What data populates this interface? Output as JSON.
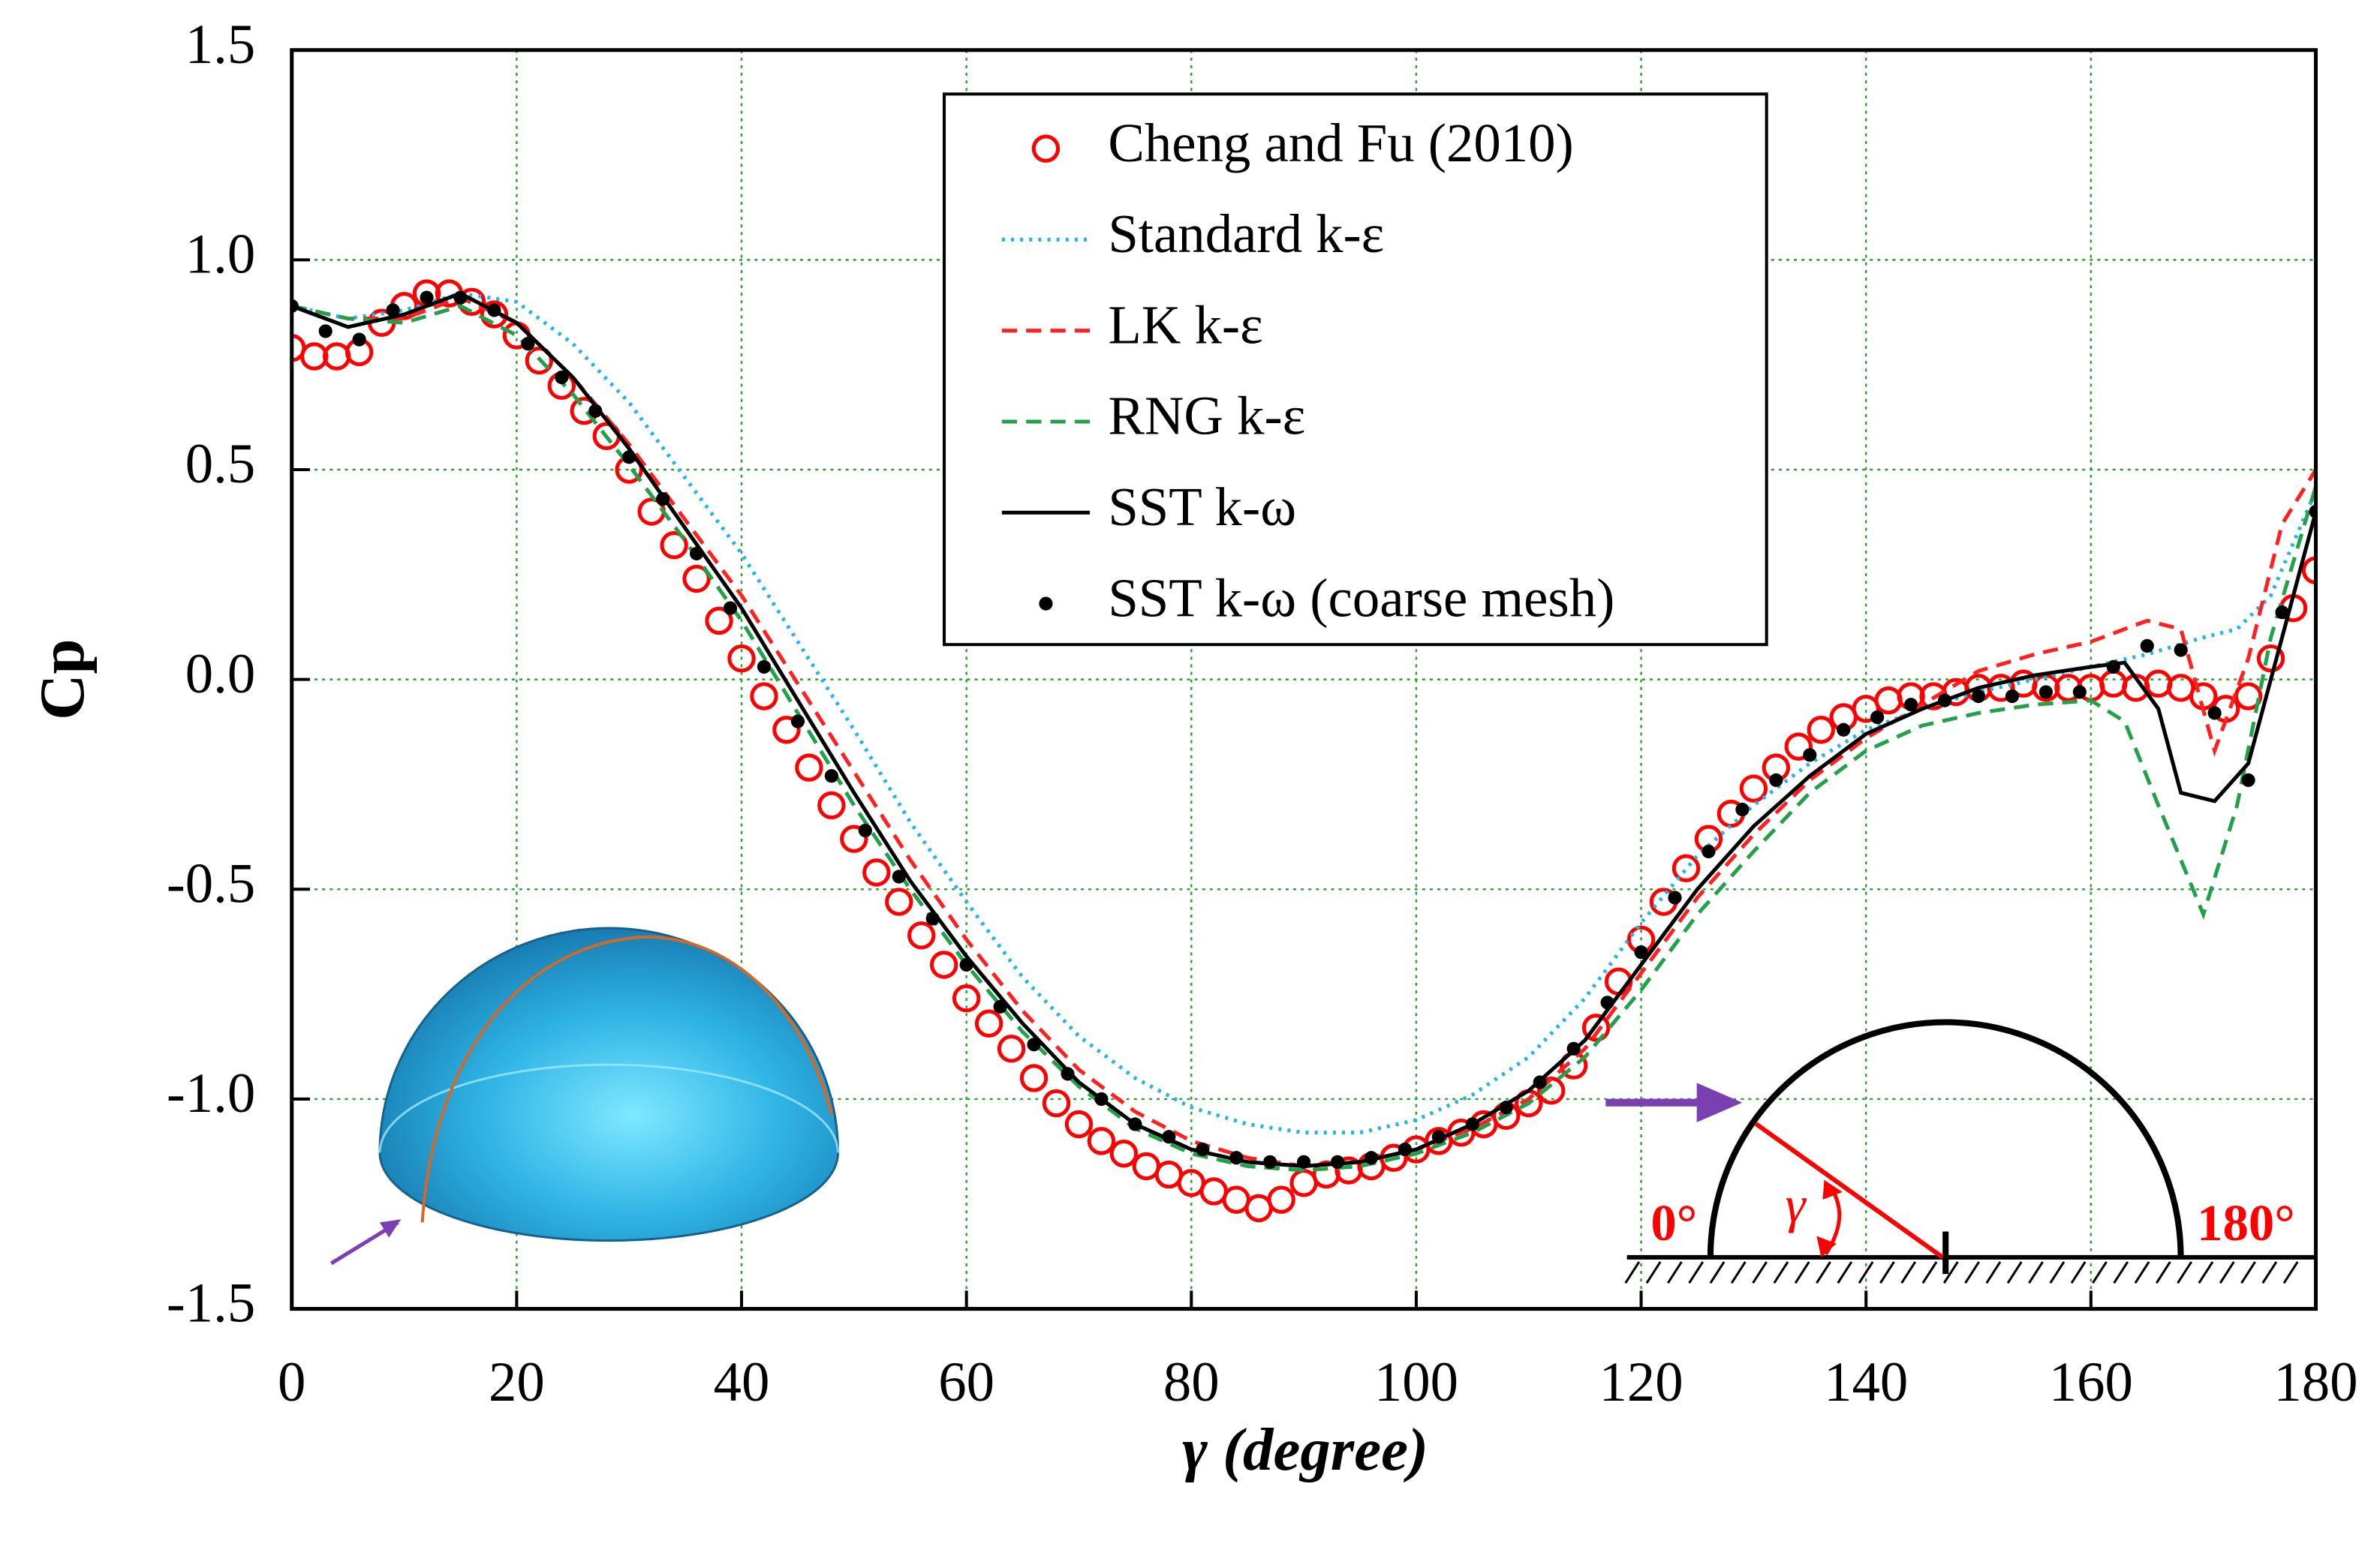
{
  "chart_data": {
    "type": "line",
    "xlabel": "γ (degree)",
    "ylabel": "Cp",
    "xlim": [
      0,
      180
    ],
    "ylim": [
      -1.5,
      1.5
    ],
    "xticks": [
      0,
      20,
      40,
      60,
      80,
      100,
      120,
      140,
      160,
      180
    ],
    "yticks": [
      1.5,
      {
        "value": 1.0,
        "label": "1.0"
      },
      0.5,
      {
        "value": 0.0,
        "label": "0.0"
      },
      -0.5,
      {
        "value": -1.0,
        "label": "-1.0"
      },
      -1.5
    ],
    "grid": true,
    "grid_color": "#2ca02c",
    "legend": "upper center",
    "annotations": [
      "0°",
      "180°",
      "γ"
    ],
    "series": [
      {
        "name": "Cheng and Fu (2010)",
        "color": "#ff0000",
        "marker": "circle",
        "line_style": "none",
        "x": [
          0,
          2,
          4,
          6,
          8,
          10,
          12,
          14,
          16,
          18,
          20,
          22,
          24,
          26,
          28,
          30,
          32,
          34,
          36,
          38,
          40,
          42,
          44,
          46,
          48,
          50,
          52,
          54,
          56,
          58,
          60,
          62,
          64,
          66,
          68,
          70,
          72,
          74,
          76,
          78,
          80,
          82,
          84,
          86,
          88,
          90,
          92,
          94,
          96,
          98,
          100,
          102,
          104,
          106,
          108,
          110,
          112,
          114,
          116,
          118,
          120,
          122,
          124,
          126,
          128,
          130,
          132,
          134,
          136,
          138,
          140,
          142,
          144,
          146,
          148,
          150,
          152,
          154,
          156,
          158,
          160,
          162,
          164,
          166,
          168,
          170,
          172,
          174,
          176,
          178,
          180
        ],
        "values": [
          0.79,
          0.77,
          0.77,
          0.78,
          0.85,
          0.89,
          0.92,
          0.92,
          0.9,
          0.87,
          0.82,
          0.76,
          0.7,
          0.64,
          0.58,
          0.5,
          0.4,
          0.32,
          0.24,
          0.14,
          0.05,
          -0.04,
          -0.12,
          -0.21,
          -0.3,
          -0.38,
          -0.46,
          -0.53,
          -0.61,
          -0.68,
          -0.76,
          -0.82,
          -0.88,
          -0.95,
          -1.01,
          -1.06,
          -1.1,
          -1.13,
          -1.16,
          -1.18,
          -1.2,
          -1.22,
          -1.24,
          -1.26,
          -1.24,
          -1.2,
          -1.18,
          -1.17,
          -1.16,
          -1.14,
          -1.12,
          -1.1,
          -1.08,
          -1.06,
          -1.04,
          -1.01,
          -0.98,
          -0.92,
          -0.83,
          -0.72,
          -0.62,
          -0.53,
          -0.45,
          -0.38,
          -0.32,
          -0.26,
          -0.21,
          -0.16,
          -0.12,
          -0.09,
          -0.07,
          -0.05,
          -0.04,
          -0.04,
          -0.03,
          -0.02,
          -0.02,
          -0.01,
          -0.02,
          -0.02,
          -0.02,
          -0.01,
          -0.02,
          -0.01,
          -0.02,
          -0.04,
          -0.07,
          -0.04,
          0.05,
          0.17,
          0.26
        ]
      },
      {
        "name": "Standard k-ε",
        "color": "#22b5e8",
        "marker": "none",
        "line_style": "dotted",
        "x": [
          0,
          5,
          10,
          15,
          20,
          25,
          30,
          35,
          40,
          45,
          50,
          55,
          60,
          65,
          70,
          75,
          80,
          85,
          90,
          95,
          100,
          105,
          110,
          115,
          120,
          125,
          130,
          135,
          140,
          145,
          150,
          155,
          160,
          165,
          170,
          173,
          176,
          180
        ],
        "values": [
          0.89,
          0.86,
          0.88,
          0.92,
          0.9,
          0.8,
          0.66,
          0.48,
          0.3,
          0.09,
          -0.12,
          -0.34,
          -0.53,
          -0.71,
          -0.85,
          -0.95,
          -1.02,
          -1.06,
          -1.08,
          -1.08,
          -1.05,
          -0.99,
          -0.9,
          -0.76,
          -0.58,
          -0.42,
          -0.3,
          -0.2,
          -0.12,
          -0.07,
          -0.03,
          0.0,
          0.03,
          0.06,
          0.1,
          0.12,
          0.2,
          0.45
        ]
      },
      {
        "name": "LK k-ε",
        "color": "#ff2020",
        "marker": "none",
        "line_style": "dashed",
        "x": [
          0,
          5,
          10,
          15,
          20,
          25,
          30,
          35,
          40,
          45,
          50,
          55,
          60,
          65,
          70,
          75,
          80,
          85,
          90,
          95,
          100,
          105,
          110,
          115,
          120,
          125,
          130,
          135,
          140,
          145,
          150,
          155,
          160,
          165,
          168,
          171,
          174,
          177,
          180
        ],
        "values": [
          0.89,
          0.86,
          0.86,
          0.91,
          0.85,
          0.72,
          0.56,
          0.38,
          0.2,
          -0.01,
          -0.22,
          -0.43,
          -0.62,
          -0.79,
          -0.93,
          -1.03,
          -1.1,
          -1.14,
          -1.16,
          -1.15,
          -1.12,
          -1.07,
          -1.0,
          -0.88,
          -0.7,
          -0.52,
          -0.37,
          -0.24,
          -0.14,
          -0.06,
          0.02,
          0.06,
          0.09,
          0.14,
          0.12,
          -0.17,
          0.05,
          0.37,
          0.5
        ]
      },
      {
        "name": "RNG k-ε",
        "color": "#22a04a",
        "marker": "none",
        "line_style": "dashed",
        "x": [
          0,
          5,
          10,
          15,
          20,
          25,
          30,
          35,
          40,
          45,
          50,
          55,
          60,
          65,
          70,
          75,
          80,
          85,
          90,
          95,
          100,
          105,
          110,
          115,
          120,
          125,
          130,
          135,
          140,
          145,
          150,
          155,
          160,
          163,
          166,
          170,
          173,
          176,
          180
        ],
        "values": [
          0.89,
          0.86,
          0.85,
          0.89,
          0.82,
          0.68,
          0.51,
          0.33,
          0.14,
          -0.08,
          -0.3,
          -0.5,
          -0.68,
          -0.84,
          -0.97,
          -1.07,
          -1.13,
          -1.16,
          -1.17,
          -1.16,
          -1.13,
          -1.08,
          -1.01,
          -0.9,
          -0.74,
          -0.56,
          -0.41,
          -0.27,
          -0.17,
          -0.11,
          -0.08,
          -0.06,
          -0.05,
          -0.1,
          -0.3,
          -0.56,
          -0.3,
          0.1,
          0.46
        ]
      },
      {
        "name": "SST k-ω",
        "color": "#000000",
        "marker": "none",
        "line_style": "solid",
        "x": [
          0,
          5,
          10,
          15,
          20,
          25,
          30,
          35,
          40,
          45,
          50,
          55,
          60,
          65,
          70,
          75,
          80,
          85,
          90,
          95,
          100,
          105,
          110,
          115,
          120,
          125,
          130,
          135,
          140,
          145,
          150,
          155,
          160,
          163,
          166,
          168,
          171,
          174,
          177,
          180
        ],
        "values": [
          0.89,
          0.84,
          0.87,
          0.92,
          0.85,
          0.72,
          0.55,
          0.36,
          0.17,
          -0.05,
          -0.27,
          -0.48,
          -0.66,
          -0.82,
          -0.96,
          -1.06,
          -1.12,
          -1.15,
          -1.16,
          -1.15,
          -1.12,
          -1.06,
          -0.98,
          -0.86,
          -0.68,
          -0.5,
          -0.35,
          -0.23,
          -0.13,
          -0.07,
          -0.02,
          0.01,
          0.03,
          0.04,
          -0.07,
          -0.27,
          -0.29,
          -0.2,
          0.1,
          0.4
        ]
      },
      {
        "name": "SST k-ω (coarse mesh)",
        "color": "#000000",
        "marker": "dot",
        "line_style": "none",
        "x": [
          0,
          3,
          6,
          9,
          12,
          15,
          18,
          21,
          24,
          27,
          30,
          33,
          36,
          39,
          42,
          45,
          48,
          51,
          54,
          57,
          60,
          63,
          66,
          69,
          72,
          75,
          78,
          81,
          84,
          87,
          90,
          93,
          96,
          99,
          102,
          105,
          108,
          111,
          114,
          117,
          120,
          123,
          126,
          129,
          132,
          135,
          138,
          141,
          144,
          147,
          150,
          153,
          156,
          159,
          162,
          165,
          168,
          171,
          174,
          177,
          180
        ],
        "values": [
          0.89,
          0.83,
          0.81,
          0.88,
          0.91,
          0.91,
          0.88,
          0.8,
          0.72,
          0.64,
          0.53,
          0.43,
          0.3,
          0.17,
          0.03,
          -0.1,
          -0.23,
          -0.36,
          -0.47,
          -0.57,
          -0.68,
          -0.78,
          -0.87,
          -0.94,
          -1.0,
          -1.06,
          -1.09,
          -1.12,
          -1.14,
          -1.15,
          -1.15,
          -1.15,
          -1.14,
          -1.12,
          -1.09,
          -1.06,
          -1.02,
          -0.96,
          -0.88,
          -0.77,
          -0.65,
          -0.52,
          -0.41,
          -0.31,
          -0.24,
          -0.18,
          -0.12,
          -0.09,
          -0.06,
          -0.05,
          -0.04,
          -0.04,
          -0.03,
          -0.03,
          0.03,
          0.08,
          0.07,
          -0.08,
          -0.24,
          0.16,
          0.4
        ]
      }
    ]
  }
}
